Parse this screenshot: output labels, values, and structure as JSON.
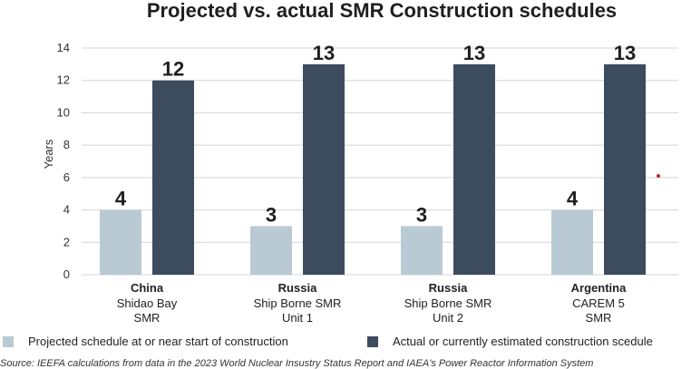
{
  "title": "Projected vs. actual SMR Construction schedules",
  "source": "Source: IEEFA calculations from data in the 2023 World Nuclear Insustry Status Report and IAEA's Power Reactor Information System",
  "colors": {
    "projected": "#b9cad4",
    "actual": "#3d4b5f",
    "grid": "#d4d4d4"
  },
  "chart_data": {
    "type": "bar",
    "categories": [
      {
        "country": "China",
        "lines": [
          "Shidao Bay",
          "SMR"
        ]
      },
      {
        "country": "Russia",
        "lines": [
          "Ship Borne SMR",
          "Unit 1"
        ]
      },
      {
        "country": "Russia",
        "lines": [
          "Ship Borne SMR",
          "Unit 2"
        ]
      },
      {
        "country": "Argentina",
        "lines": [
          "CAREM 5",
          "SMR"
        ]
      }
    ],
    "series": [
      {
        "name": "Projected schedule at or near start of construction",
        "values": [
          4,
          3,
          3,
          4
        ]
      },
      {
        "name": "Actual or currently estimated construction scedule",
        "values": [
          12,
          13,
          13,
          13
        ]
      }
    ],
    "ylabel": "Years",
    "ylim": [
      0,
      14
    ],
    "yticks": [
      "0",
      "2",
      "4",
      "6",
      "8",
      "10",
      "12",
      "14"
    ],
    "grid": true,
    "legend_position": "bottom"
  }
}
